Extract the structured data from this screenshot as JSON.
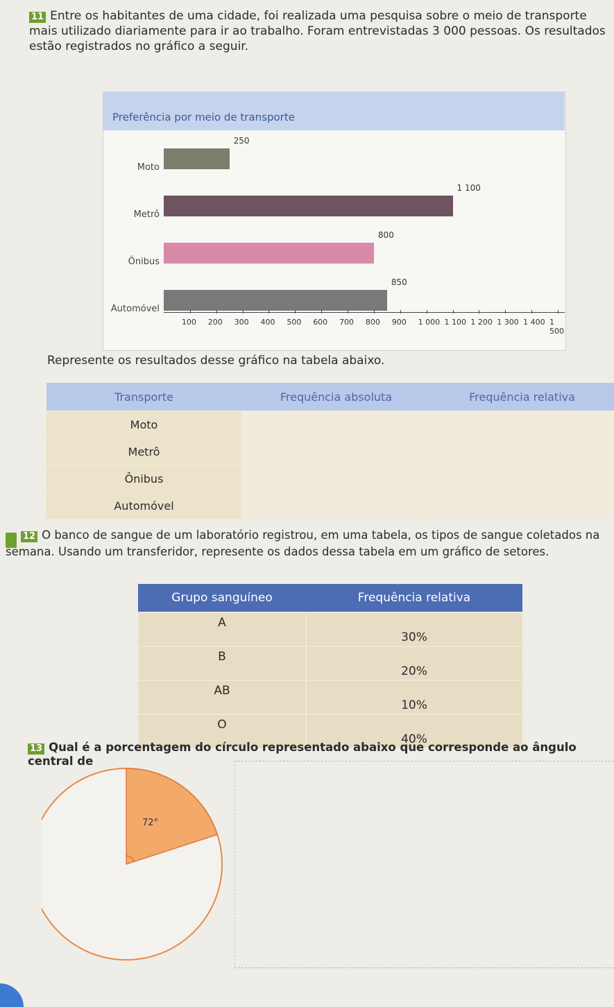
{
  "q11": {
    "number": "11",
    "text": "Entre os habitantes de uma cidade, foi realizada uma pesquisa sobre o meio de transporte mais utilizado diariamente para ir ao trabalho. Foram entrevistadas 3 000 pessoas. Os resultados estão registrados no gráfico a seguir."
  },
  "chart_data": {
    "type": "bar",
    "orientation": "horizontal",
    "title": "Preferência por meio de transporte",
    "categories": [
      "Moto",
      "Metrô",
      "Ônibus",
      "Automóvel"
    ],
    "values": [
      250,
      1100,
      800,
      850
    ],
    "value_labels": [
      "250",
      "1 100",
      "800",
      "850"
    ],
    "colors": [
      "#7c7e6d",
      "#6e5360",
      "#d98aa8",
      "#797979"
    ],
    "xticks": [
      "100",
      "200",
      "300",
      "400",
      "500",
      "600",
      "700",
      "800",
      "900",
      "1 000",
      "1 100",
      "1 200",
      "1 300",
      "1 400",
      "1 500"
    ],
    "xlim": [
      0,
      1500
    ],
    "grid": false
  },
  "instruction": "Represente os resultados desse gráfico na tabela abaixo.",
  "table1": {
    "headers": [
      "Transporte",
      "Frequência absoluta",
      "Frequência relativa"
    ],
    "rows": [
      "Moto",
      "Metrô",
      "Ônibus",
      "Automóvel"
    ]
  },
  "q12": {
    "number": "12",
    "text": "O banco de sangue de um laboratório registrou, em uma tabela, os tipos de sangue coletados na semana. Usando um transferidor, represente os dados dessa tabela em um gráfico de setores."
  },
  "table2": {
    "headers": [
      "Grupo sanguíneo",
      "Frequência relativa"
    ],
    "rows": [
      {
        "group": "A",
        "freq": "30%"
      },
      {
        "group": "B",
        "freq": "20%"
      },
      {
        "group": "AB",
        "freq": "10%"
      },
      {
        "group": "O",
        "freq": "40%"
      }
    ]
  },
  "q13": {
    "number": "13",
    "text": "Qual é a porcentagem do círculo representado abaixo que corresponde ao ângulo central de",
    "angle_label": "72°",
    "sector_color": "#f3a96a",
    "circle_color": "#e8894a"
  }
}
